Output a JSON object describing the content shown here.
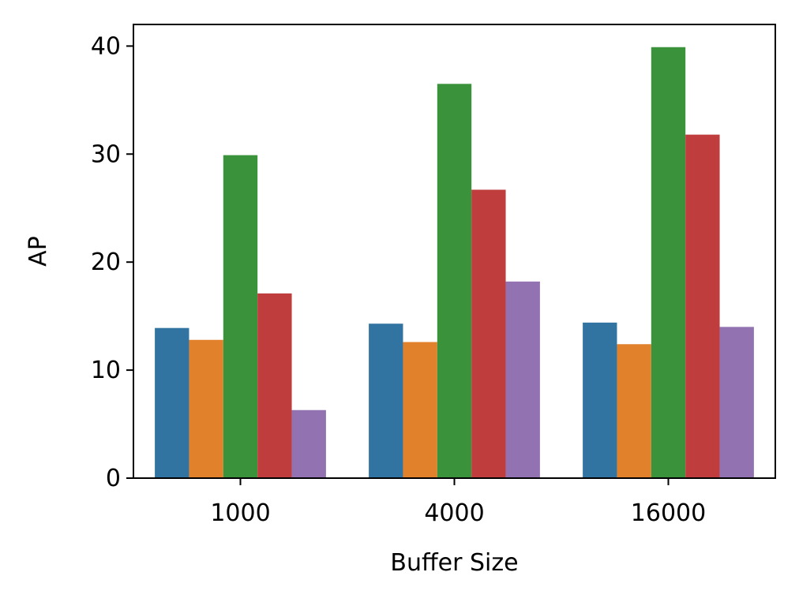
{
  "chart_data": {
    "type": "bar",
    "title": "",
    "xlabel": "Buffer Size",
    "ylabel": "AP",
    "categories": [
      "1000",
      "4000",
      "16000"
    ],
    "ylim": [
      0,
      42
    ],
    "yticks": [
      0,
      10,
      20,
      30,
      40
    ],
    "grid": false,
    "legend": "none",
    "series": [
      {
        "color": "#3274a1",
        "values": [
          13.9,
          14.3,
          14.4
        ]
      },
      {
        "color": "#e1812c",
        "values": [
          12.8,
          12.6,
          12.4
        ]
      },
      {
        "color": "#3a923a",
        "values": [
          29.9,
          36.5,
          39.9
        ]
      },
      {
        "color": "#c03d3e",
        "values": [
          17.1,
          26.7,
          31.8
        ]
      },
      {
        "color": "#9372b2",
        "values": [
          6.3,
          18.2,
          14.0
        ]
      }
    ]
  }
}
